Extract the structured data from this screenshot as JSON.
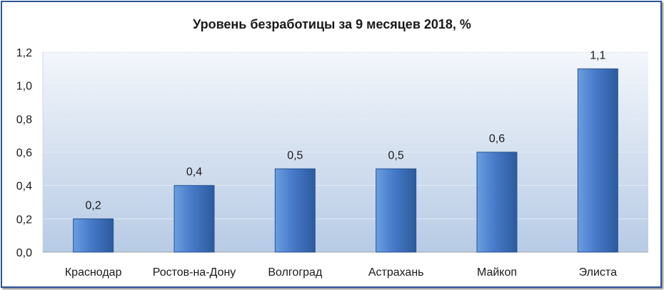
{
  "chart_data": {
    "type": "bar",
    "title": "Уровень безработицы за 9 месяцев 2018, %",
    "categories": [
      "Краснодар",
      "Ростов-на-Дону",
      "Волгоград",
      "Астрахань",
      "Майкоп",
      "Элиста"
    ],
    "values": [
      0.2,
      0.4,
      0.5,
      0.5,
      0.6,
      1.1
    ],
    "data_labels": [
      "0,2",
      "0,4",
      "0,5",
      "0,5",
      "0,6",
      "1,1"
    ],
    "y_tick_values": [
      0,
      0.2,
      0.4,
      0.6,
      0.8,
      1.0,
      1.2
    ],
    "y_ticks": [
      "0,0",
      "0,2",
      "0,4",
      "0,6",
      "0,8",
      "1,0",
      "1,2"
    ],
    "ylim": [
      0,
      1.2
    ],
    "grid": true,
    "colors": {
      "bar_light": "#6a9ee0",
      "bar_mid": "#4679c8",
      "bar_dark": "#2c5a9c",
      "plot_top": "#f3f6fb",
      "plot_bottom": "#b7cbe5",
      "gridline": "#e4eaf4",
      "axis": "#a6a6a6",
      "frame": "#2f5597"
    }
  }
}
